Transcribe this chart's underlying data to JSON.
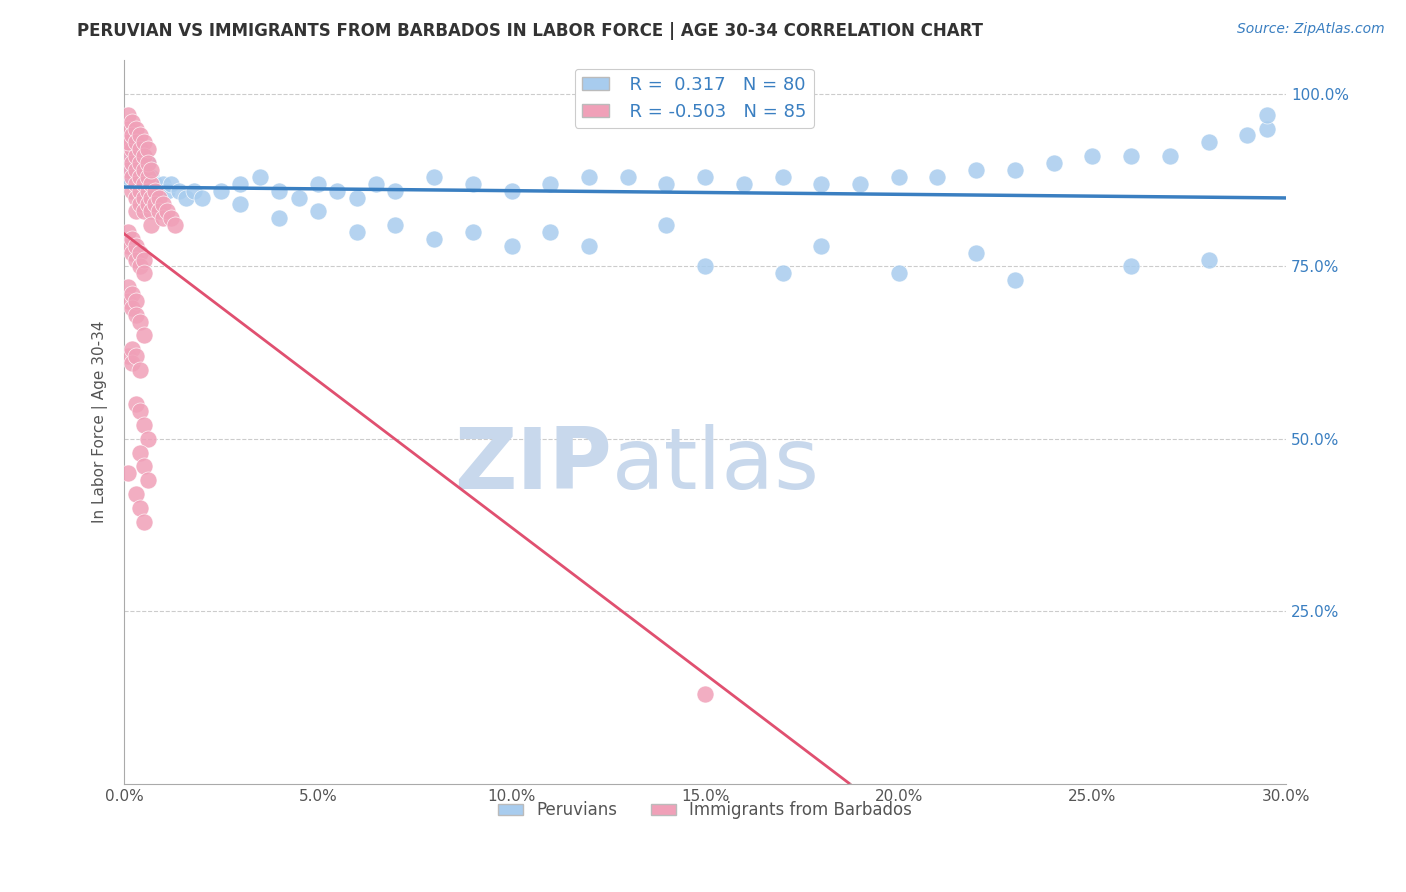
{
  "title": "PERUVIAN VS IMMIGRANTS FROM BARBADOS IN LABOR FORCE | AGE 30-34 CORRELATION CHART",
  "source_text": "Source: ZipAtlas.com",
  "ylabel": "In Labor Force | Age 30-34",
  "xlim": [
    0.0,
    0.3
  ],
  "ylim": [
    0.0,
    1.05
  ],
  "xtick_labels": [
    "0.0%",
    "5.0%",
    "10.0%",
    "15.0%",
    "20.0%",
    "25.0%",
    "30.0%"
  ],
  "xtick_values": [
    0.0,
    0.05,
    0.1,
    0.15,
    0.2,
    0.25,
    0.3
  ],
  "ytick_labels_right": [
    "25.0%",
    "50.0%",
    "75.0%",
    "100.0%"
  ],
  "ytick_values_right": [
    0.25,
    0.5,
    0.75,
    1.0
  ],
  "blue_color": "#A8CCEE",
  "pink_color": "#F0A0B8",
  "blue_line_color": "#3A7FC1",
  "pink_line_color": "#E05070",
  "watermark_zip": "ZIP",
  "watermark_atlas": "atlas",
  "watermark_color": "#C8D8EC",
  "legend_r_blue": "R =  0.317",
  "legend_n_blue": "N = 80",
  "legend_r_pink": "R = -0.503",
  "legend_n_pink": "N = 85",
  "blue_points_x": [
    0.001,
    0.001,
    0.002,
    0.002,
    0.003,
    0.003,
    0.004,
    0.004,
    0.005,
    0.005,
    0.006,
    0.007,
    0.008,
    0.009,
    0.01,
    0.011,
    0.012,
    0.014,
    0.016,
    0.018,
    0.02,
    0.025,
    0.03,
    0.035,
    0.04,
    0.045,
    0.05,
    0.055,
    0.06,
    0.065,
    0.07,
    0.08,
    0.09,
    0.1,
    0.11,
    0.12,
    0.13,
    0.14,
    0.15,
    0.16,
    0.17,
    0.18,
    0.19,
    0.2,
    0.21,
    0.22,
    0.23,
    0.24,
    0.25,
    0.26,
    0.27,
    0.28,
    0.29,
    0.295,
    0.001,
    0.002,
    0.003,
    0.004,
    0.005,
    0.006,
    0.04,
    0.06,
    0.08,
    0.1,
    0.12,
    0.15,
    0.17,
    0.2,
    0.23,
    0.26,
    0.03,
    0.05,
    0.07,
    0.09,
    0.11,
    0.14,
    0.18,
    0.22,
    0.28,
    0.295
  ],
  "blue_points_y": [
    0.88,
    0.9,
    0.89,
    0.91,
    0.88,
    0.9,
    0.89,
    0.87,
    0.88,
    0.86,
    0.87,
    0.88,
    0.87,
    0.86,
    0.87,
    0.86,
    0.87,
    0.86,
    0.85,
    0.86,
    0.85,
    0.86,
    0.87,
    0.88,
    0.86,
    0.85,
    0.87,
    0.86,
    0.85,
    0.87,
    0.86,
    0.88,
    0.87,
    0.86,
    0.87,
    0.88,
    0.88,
    0.87,
    0.88,
    0.87,
    0.88,
    0.87,
    0.87,
    0.88,
    0.88,
    0.89,
    0.89,
    0.9,
    0.91,
    0.91,
    0.91,
    0.93,
    0.94,
    0.95,
    0.93,
    0.92,
    0.91,
    0.92,
    0.91,
    0.9,
    0.82,
    0.8,
    0.79,
    0.78,
    0.78,
    0.75,
    0.74,
    0.74,
    0.73,
    0.75,
    0.84,
    0.83,
    0.81,
    0.8,
    0.8,
    0.81,
    0.78,
    0.77,
    0.76,
    0.97
  ],
  "pink_points_x": [
    0.001,
    0.001,
    0.001,
    0.002,
    0.002,
    0.002,
    0.002,
    0.003,
    0.003,
    0.003,
    0.003,
    0.003,
    0.004,
    0.004,
    0.004,
    0.004,
    0.005,
    0.005,
    0.005,
    0.005,
    0.006,
    0.006,
    0.006,
    0.007,
    0.007,
    0.007,
    0.007,
    0.008,
    0.008,
    0.009,
    0.009,
    0.01,
    0.01,
    0.011,
    0.012,
    0.013,
    0.001,
    0.001,
    0.001,
    0.002,
    0.002,
    0.003,
    0.003,
    0.004,
    0.004,
    0.005,
    0.005,
    0.006,
    0.006,
    0.007,
    0.001,
    0.001,
    0.002,
    0.002,
    0.003,
    0.003,
    0.004,
    0.004,
    0.005,
    0.005,
    0.001,
    0.001,
    0.002,
    0.002,
    0.003,
    0.003,
    0.004,
    0.005,
    0.001,
    0.002,
    0.002,
    0.003,
    0.004,
    0.003,
    0.004,
    0.005,
    0.006,
    0.004,
    0.005,
    0.006,
    0.003,
    0.004,
    0.005,
    0.15,
    0.001
  ],
  "pink_points_y": [
    0.93,
    0.91,
    0.89,
    0.92,
    0.9,
    0.88,
    0.86,
    0.91,
    0.89,
    0.87,
    0.85,
    0.83,
    0.9,
    0.88,
    0.86,
    0.84,
    0.89,
    0.87,
    0.85,
    0.83,
    0.88,
    0.86,
    0.84,
    0.87,
    0.85,
    0.83,
    0.81,
    0.86,
    0.84,
    0.85,
    0.83,
    0.84,
    0.82,
    0.83,
    0.82,
    0.81,
    0.97,
    0.95,
    0.93,
    0.96,
    0.94,
    0.95,
    0.93,
    0.94,
    0.92,
    0.93,
    0.91,
    0.92,
    0.9,
    0.89,
    0.8,
    0.78,
    0.79,
    0.77,
    0.78,
    0.76,
    0.77,
    0.75,
    0.76,
    0.74,
    0.72,
    0.7,
    0.71,
    0.69,
    0.7,
    0.68,
    0.67,
    0.65,
    0.62,
    0.63,
    0.61,
    0.62,
    0.6,
    0.55,
    0.54,
    0.52,
    0.5,
    0.48,
    0.46,
    0.44,
    0.42,
    0.4,
    0.38,
    0.13,
    0.45
  ]
}
